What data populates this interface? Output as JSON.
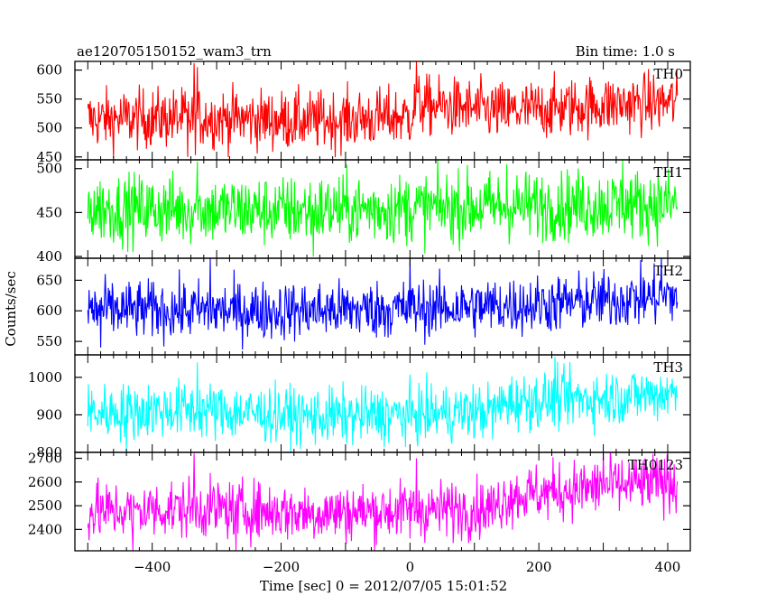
{
  "chart_data": {
    "type": "line",
    "title": "ae120705150152_wam3_trn",
    "subtitle": "Bin time: 1.0 s",
    "xlabel": "Time [sec] 0 = 2012/07/05 15:01:52",
    "ylabel": "Counts/sec",
    "xlim": [
      -520,
      435
    ],
    "xticks": [
      -400,
      -200,
      0,
      200,
      400
    ],
    "xtick_labels": [
      "−400",
      "−200",
      "0",
      "200",
      "400"
    ],
    "x_start": -500,
    "x_end": 415,
    "x_step": 1,
    "grid": false,
    "series": [
      {
        "name": "TH0",
        "color": "#ff0000",
        "ylim": [
          445,
          615
        ],
        "yticks": [
          450,
          500,
          550,
          600
        ],
        "trend": [
          [
            -500,
            515
          ],
          [
            -330,
            518
          ],
          [
            -150,
            512
          ],
          [
            0,
            520
          ],
          [
            10,
            540
          ],
          [
            150,
            528
          ],
          [
            200,
            532
          ],
          [
            300,
            540
          ],
          [
            415,
            545
          ]
        ],
        "noise": 26,
        "spikes": [
          [
            -335,
            612
          ],
          [
            -330,
            605
          ],
          [
            10,
            615
          ],
          [
            -345,
            450
          ]
        ]
      },
      {
        "name": "TH1",
        "color": "#00ff00",
        "ylim": [
          398,
          510
        ],
        "yticks": [
          400,
          450,
          500
        ],
        "trend": [
          [
            -500,
            455
          ],
          [
            -200,
            452
          ],
          [
            0,
            455
          ],
          [
            200,
            458
          ],
          [
            415,
            460
          ]
        ],
        "noise": 20,
        "spikes": [
          [
            -330,
            508
          ],
          [
            -150,
            400
          ],
          [
            150,
            505
          ],
          [
            330,
            510
          ]
        ]
      },
      {
        "name": "TH2",
        "color": "#0000ff",
        "ylim": [
          528,
          686
        ],
        "yticks": [
          550,
          600,
          650
        ],
        "trend": [
          [
            -500,
            602
          ],
          [
            -200,
            600
          ],
          [
            0,
            603
          ],
          [
            200,
            610
          ],
          [
            415,
            625
          ]
        ],
        "noise": 24,
        "spikes": [
          [
            -310,
            686
          ],
          [
            0,
            686
          ],
          [
            390,
            686
          ],
          [
            -480,
            540
          ]
        ]
      },
      {
        "name": "TH3",
        "color": "#00ffff",
        "ylim": [
          800,
          1060
        ],
        "yticks": [
          800,
          900,
          1000
        ],
        "trend": [
          [
            -500,
            905
          ],
          [
            -350,
            915
          ],
          [
            -150,
            895
          ],
          [
            0,
            900
          ],
          [
            130,
            910
          ],
          [
            150,
            935
          ],
          [
            300,
            945
          ],
          [
            415,
            960
          ]
        ],
        "noise": 38,
        "spikes": [
          [
            -440,
            800
          ],
          [
            225,
            1055
          ],
          [
            -330,
            1040
          ]
        ]
      },
      {
        "name": "TH0123",
        "color": "#ff00ff",
        "ylim": [
          2310,
          2725
        ],
        "yticks": [
          2400,
          2500,
          2600,
          2700
        ],
        "trend": [
          [
            -500,
            2475
          ],
          [
            -330,
            2490
          ],
          [
            -150,
            2470
          ],
          [
            0,
            2480
          ],
          [
            130,
            2490
          ],
          [
            150,
            2540
          ],
          [
            300,
            2580
          ],
          [
            415,
            2600
          ]
        ],
        "noise": 62,
        "spikes": [
          [
            -335,
            2720
          ],
          [
            10,
            2700
          ],
          [
            300,
            2720
          ],
          [
            -430,
            2310
          ],
          [
            -270,
            2310
          ]
        ]
      }
    ]
  }
}
